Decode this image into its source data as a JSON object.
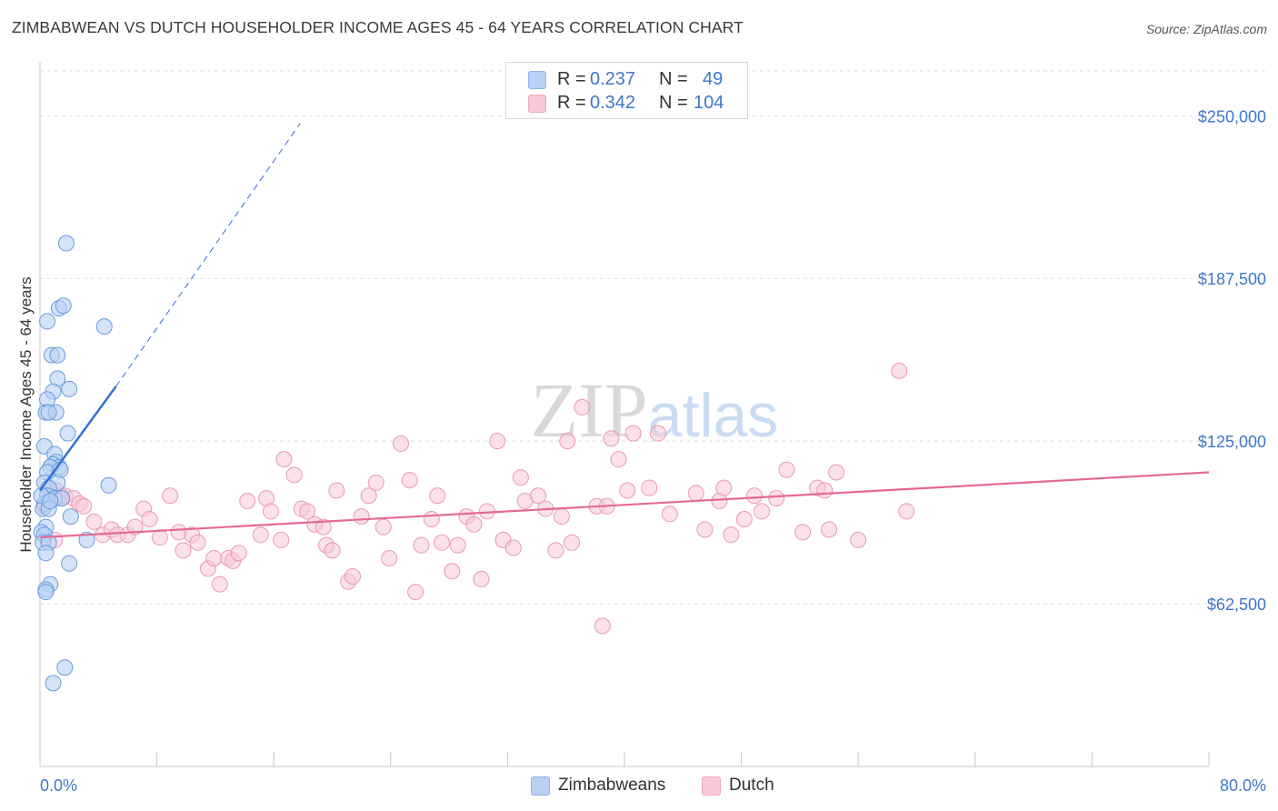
{
  "header": {
    "title": "ZIMBABWEAN VS DUTCH HOUSEHOLDER INCOME AGES 45 - 64 YEARS CORRELATION CHART",
    "source": "Source: ZipAtlas.com"
  },
  "legend": {
    "rows": [
      {
        "r_label": "R =",
        "r_value": "0.237",
        "n_label": "N =",
        "n_value": "49"
      },
      {
        "r_label": "R =",
        "r_value": "0.342",
        "n_label": "N =",
        "n_value": "104"
      }
    ],
    "bottom": [
      "Zimbabweans",
      "Dutch"
    ]
  },
  "colors": {
    "blue_fill": "#b7d0f4",
    "blue_stroke": "#6a9be0",
    "blue_line": "#2f6fd1",
    "pink_fill": "#f8c8d7",
    "pink_stroke": "#e89ab3",
    "pink_line": "#e36a95",
    "axis_label": "#3f77cc"
  },
  "chart_data": {
    "type": "scatter",
    "title": "ZIMBABWEAN VS DUTCH HOUSEHOLDER INCOME AGES 45 - 64 YEARS CORRELATION CHART",
    "xlabel": "",
    "ylabel": "Householder Income Ages 45 - 64 years",
    "xlim": [
      0,
      80
    ],
    "ylim": [
      0,
      270000
    ],
    "x_tick_labels": [
      "0.0%",
      "80.0%"
    ],
    "y_ticks": [
      62500,
      125000,
      187500,
      250000
    ],
    "y_tick_labels": [
      "$62,500",
      "$125,000",
      "$187,500",
      "$250,000"
    ],
    "watermark": "ZIPatlas",
    "series": [
      {
        "name": "Zimbabweans",
        "R": 0.237,
        "N": 49,
        "trend": {
          "x0": 0,
          "y0": 106000,
          "x1": 5.2,
          "y1": 146000,
          "dashed_to_x": 17.8,
          "dashed_to_y": 247000
        },
        "points": [
          [
            1.8,
            201000
          ],
          [
            1.3,
            176000
          ],
          [
            1.6,
            177000
          ],
          [
            4.4,
            169000
          ],
          [
            0.5,
            171000
          ],
          [
            0.8,
            158000
          ],
          [
            1.2,
            158000
          ],
          [
            1.2,
            149000
          ],
          [
            2.0,
            145000
          ],
          [
            0.9,
            144000
          ],
          [
            0.5,
            141000
          ],
          [
            0.4,
            136000
          ],
          [
            1.1,
            136000
          ],
          [
            0.6,
            136000
          ],
          [
            1.9,
            128000
          ],
          [
            0.3,
            123000
          ],
          [
            1.0,
            120000
          ],
          [
            1.1,
            117000
          ],
          [
            0.9,
            116000
          ],
          [
            1.3,
            115000
          ],
          [
            0.7,
            115000
          ],
          [
            0.5,
            113000
          ],
          [
            4.7,
            108000
          ],
          [
            0.3,
            109000
          ],
          [
            1.2,
            109000
          ],
          [
            0.6,
            107000
          ],
          [
            0.5,
            104000
          ],
          [
            1.0,
            103000
          ],
          [
            1.5,
            103000
          ],
          [
            0.3,
            101000
          ],
          [
            0.2,
            99000
          ],
          [
            0.6,
            99000
          ],
          [
            2.1,
            96000
          ],
          [
            0.4,
            92000
          ],
          [
            0.1,
            90000
          ],
          [
            0.3,
            89000
          ],
          [
            3.2,
            87000
          ],
          [
            0.2,
            86000
          ],
          [
            0.6,
            86000
          ],
          [
            0.4,
            82000
          ],
          [
            2.0,
            78000
          ],
          [
            0.7,
            70000
          ],
          [
            0.4,
            68000
          ],
          [
            0.4,
            67000
          ],
          [
            1.7,
            38000
          ],
          [
            0.9,
            32000
          ],
          [
            0.1,
            104000
          ],
          [
            0.7,
            102000
          ],
          [
            1.4,
            114000
          ]
        ]
      },
      {
        "name": "Dutch",
        "R": 0.342,
        "N": 104,
        "trend": {
          "x0": 0,
          "y0": 88000,
          "x1": 80,
          "y1": 113000
        },
        "points": [
          [
            0.3,
            100000
          ],
          [
            0.8,
            105000
          ],
          [
            1.1,
            106000
          ],
          [
            1.4,
            104000
          ],
          [
            1.5,
            103000
          ],
          [
            1.7,
            104000
          ],
          [
            2.3,
            103000
          ],
          [
            2.7,
            101000
          ],
          [
            1.0,
            87000
          ],
          [
            3.0,
            100000
          ],
          [
            3.7,
            94000
          ],
          [
            4.3,
            89000
          ],
          [
            4.9,
            91000
          ],
          [
            5.3,
            89000
          ],
          [
            6.0,
            89000
          ],
          [
            6.5,
            92000
          ],
          [
            7.1,
            99000
          ],
          [
            7.5,
            95000
          ],
          [
            8.2,
            88000
          ],
          [
            8.9,
            104000
          ],
          [
            9.5,
            90000
          ],
          [
            9.8,
            83000
          ],
          [
            10.4,
            89000
          ],
          [
            10.8,
            86000
          ],
          [
            11.5,
            76000
          ],
          [
            11.9,
            80000
          ],
          [
            12.3,
            70000
          ],
          [
            12.9,
            80000
          ],
          [
            13.2,
            79000
          ],
          [
            13.6,
            82000
          ],
          [
            14.2,
            102000
          ],
          [
            15.1,
            89000
          ],
          [
            15.5,
            103000
          ],
          [
            15.8,
            98000
          ],
          [
            16.5,
            87000
          ],
          [
            16.7,
            118000
          ],
          [
            17.4,
            112000
          ],
          [
            17.9,
            99000
          ],
          [
            18.3,
            98000
          ],
          [
            18.8,
            93000
          ],
          [
            19.4,
            92000
          ],
          [
            19.6,
            85000
          ],
          [
            20.0,
            83000
          ],
          [
            20.3,
            106000
          ],
          [
            21.1,
            71000
          ],
          [
            21.4,
            73000
          ],
          [
            22.0,
            96000
          ],
          [
            22.5,
            104000
          ],
          [
            23.0,
            109000
          ],
          [
            23.5,
            92000
          ],
          [
            23.9,
            80000
          ],
          [
            24.7,
            124000
          ],
          [
            25.3,
            110000
          ],
          [
            25.7,
            67000
          ],
          [
            26.1,
            85000
          ],
          [
            26.8,
            95000
          ],
          [
            27.2,
            104000
          ],
          [
            27.5,
            86000
          ],
          [
            28.2,
            75000
          ],
          [
            28.6,
            85000
          ],
          [
            29.2,
            96000
          ],
          [
            29.7,
            93000
          ],
          [
            30.2,
            72000
          ],
          [
            30.6,
            98000
          ],
          [
            31.3,
            125000
          ],
          [
            31.7,
            87000
          ],
          [
            32.4,
            84000
          ],
          [
            32.9,
            111000
          ],
          [
            33.2,
            102000
          ],
          [
            34.1,
            104000
          ],
          [
            34.6,
            99000
          ],
          [
            35.3,
            83000
          ],
          [
            35.7,
            96000
          ],
          [
            36.1,
            125000
          ],
          [
            36.4,
            86000
          ],
          [
            37.1,
            138000
          ],
          [
            38.1,
            100000
          ],
          [
            38.8,
            100000
          ],
          [
            38.5,
            54000
          ],
          [
            39.1,
            126000
          ],
          [
            39.6,
            118000
          ],
          [
            40.2,
            106000
          ],
          [
            40.6,
            128000
          ],
          [
            41.7,
            107000
          ],
          [
            42.3,
            128000
          ],
          [
            43.1,
            97000
          ],
          [
            44.9,
            105000
          ],
          [
            45.5,
            91000
          ],
          [
            46.5,
            102000
          ],
          [
            46.8,
            107000
          ],
          [
            47.3,
            89000
          ],
          [
            48.2,
            95000
          ],
          [
            48.9,
            104000
          ],
          [
            49.4,
            98000
          ],
          [
            50.4,
            103000
          ],
          [
            51.1,
            114000
          ],
          [
            52.2,
            90000
          ],
          [
            53.2,
            107000
          ],
          [
            53.7,
            106000
          ],
          [
            54.0,
            91000
          ],
          [
            54.5,
            113000
          ],
          [
            56.0,
            87000
          ],
          [
            58.8,
            152000
          ],
          [
            59.3,
            98000
          ]
        ]
      }
    ]
  }
}
